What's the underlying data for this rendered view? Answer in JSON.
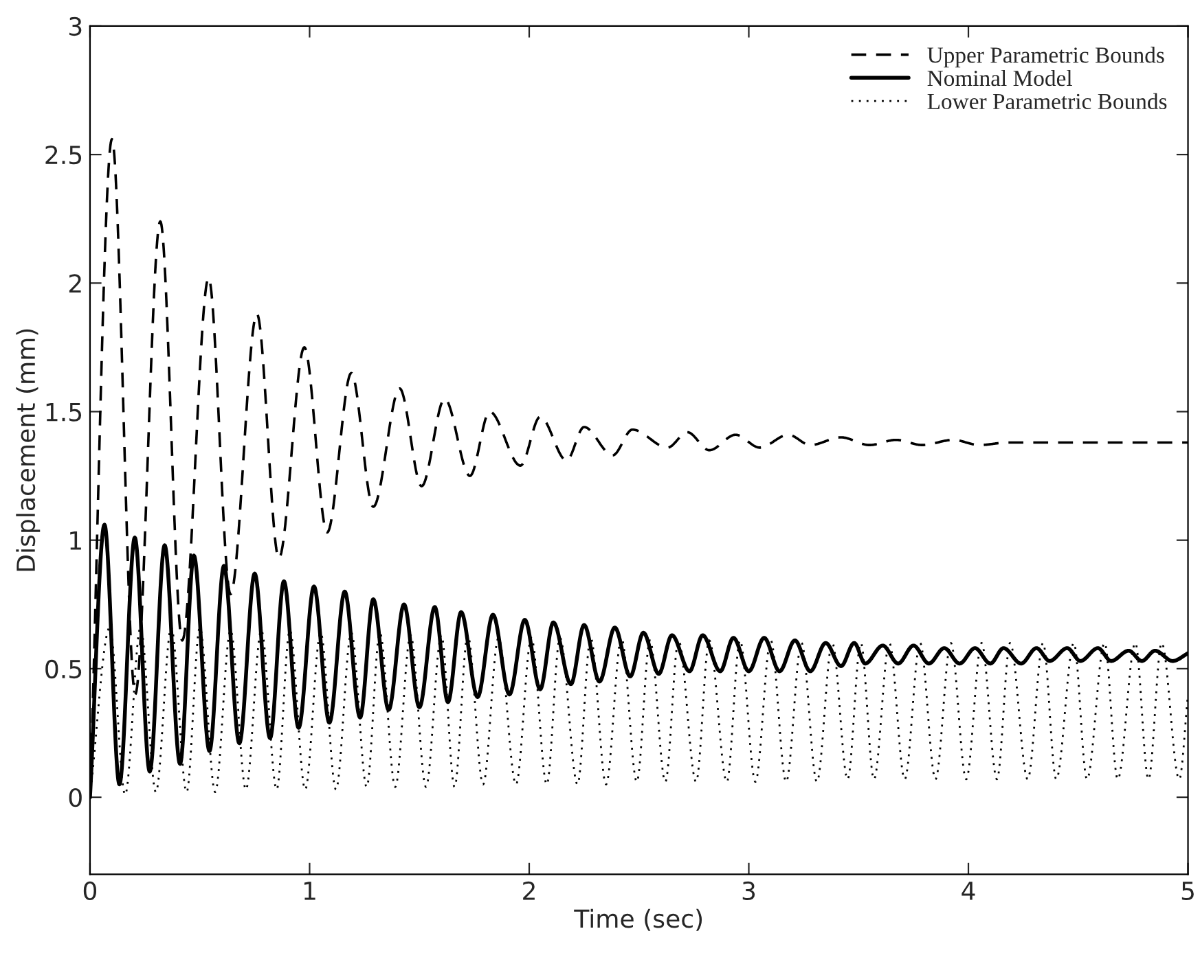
{
  "chart_data": {
    "type": "line",
    "xlabel": "Time (sec)",
    "ylabel": "Displacement (mm)",
    "xlim": [
      0,
      5
    ],
    "xticks": [
      0,
      1,
      2,
      3,
      4,
      5
    ],
    "ylim": [
      -0.3,
      3
    ],
    "yticks": [
      0,
      0.5,
      1,
      1.5,
      2,
      2.5,
      3
    ],
    "grid": false,
    "legend": "top right",
    "marker": "none",
    "series": [
      {
        "name": "Upper Parametric Bounds",
        "color": "#000000",
        "line_style": "dashed",
        "x": [
          0,
          0.1,
          0.206,
          0.32,
          0.42,
          0.54,
          0.64,
          0.76,
          0.86,
          0.976,
          1.08,
          1.19,
          1.29,
          1.41,
          1.51,
          1.615,
          1.73,
          1.82,
          1.96,
          2.05,
          2.17,
          2.25,
          2.38,
          2.47,
          2.63,
          2.72,
          2.82,
          2.94,
          3.05,
          3.18,
          3.28,
          3.42,
          3.55,
          3.67,
          3.79,
          3.93,
          4.05,
          4.18,
          4.5,
          5.0
        ],
        "values": [
          0,
          2.56,
          0.4,
          2.24,
          0.61,
          2.02,
          0.79,
          1.88,
          0.93,
          1.75,
          1.03,
          1.65,
          1.13,
          1.59,
          1.21,
          1.55,
          1.25,
          1.5,
          1.29,
          1.48,
          1.31,
          1.44,
          1.33,
          1.43,
          1.36,
          1.42,
          1.35,
          1.41,
          1.36,
          1.41,
          1.37,
          1.4,
          1.37,
          1.39,
          1.37,
          1.39,
          1.37,
          1.38,
          1.38,
          1.38
        ]
      },
      {
        "name": "Nominal Model",
        "color": "#000000",
        "line_style": "solid",
        "x": [
          0,
          0.066,
          0.134,
          0.204,
          0.272,
          0.34,
          0.41,
          0.473,
          0.544,
          0.61,
          0.68,
          0.75,
          0.82,
          0.883,
          0.95,
          1.02,
          1.09,
          1.16,
          1.23,
          1.29,
          1.36,
          1.43,
          1.5,
          1.57,
          1.63,
          1.69,
          1.765,
          1.835,
          1.91,
          1.98,
          2.05,
          2.11,
          2.19,
          2.25,
          2.32,
          2.39,
          2.46,
          2.52,
          2.59,
          2.65,
          2.73,
          2.79,
          2.87,
          2.93,
          3.0,
          3.07,
          3.14,
          3.21,
          3.28,
          3.35,
          3.42,
          3.48,
          3.53,
          3.61,
          3.68,
          3.75,
          3.82,
          3.89,
          3.96,
          4.03,
          4.1,
          4.16,
          4.24,
          4.31,
          4.37,
          4.45,
          4.51,
          4.59,
          4.65,
          4.73,
          4.79,
          4.85,
          4.93,
          5.0
        ],
        "values": [
          0,
          1.06,
          0.05,
          1.01,
          0.1,
          0.98,
          0.13,
          0.94,
          0.18,
          0.9,
          0.21,
          0.87,
          0.23,
          0.84,
          0.27,
          0.82,
          0.29,
          0.8,
          0.31,
          0.77,
          0.34,
          0.75,
          0.35,
          0.74,
          0.37,
          0.72,
          0.39,
          0.71,
          0.4,
          0.69,
          0.42,
          0.68,
          0.44,
          0.67,
          0.45,
          0.66,
          0.47,
          0.64,
          0.48,
          0.63,
          0.49,
          0.63,
          0.49,
          0.62,
          0.49,
          0.62,
          0.49,
          0.61,
          0.49,
          0.6,
          0.51,
          0.6,
          0.52,
          0.59,
          0.52,
          0.59,
          0.52,
          0.58,
          0.52,
          0.58,
          0.52,
          0.58,
          0.52,
          0.58,
          0.53,
          0.58,
          0.53,
          0.58,
          0.53,
          0.57,
          0.53,
          0.57,
          0.53,
          0.56
        ]
      },
      {
        "name": "Lower Parametric Bounds",
        "color": "#000000",
        "line_style": "dotted",
        "x": [
          0,
          0.09,
          0.16,
          0.23,
          0.3,
          0.37,
          0.44,
          0.5,
          0.57,
          0.64,
          0.71,
          0.78,
          0.85,
          0.91,
          0.98,
          1.05,
          1.12,
          1.19,
          1.26,
          1.32,
          1.39,
          1.46,
          1.53,
          1.6,
          1.66,
          1.72,
          1.79,
          1.86,
          1.94,
          2.01,
          2.08,
          2.14,
          2.22,
          2.28,
          2.35,
          2.42,
          2.49,
          2.55,
          2.62,
          2.68,
          2.76,
          2.82,
          2.9,
          2.96,
          3.03,
          3.1,
          3.17,
          3.24,
          3.31,
          3.38,
          3.45,
          3.51,
          3.57,
          3.64,
          3.71,
          3.78,
          3.85,
          3.92,
          3.99,
          4.06,
          4.13,
          4.19,
          4.27,
          4.34,
          4.4,
          4.48,
          4.54,
          4.62,
          4.68,
          4.76,
          4.82,
          4.88,
          4.96,
          5.0
        ],
        "values": [
          0,
          0.66,
          0.01,
          0.66,
          0.02,
          0.66,
          0.02,
          0.66,
          0.02,
          0.65,
          0.03,
          0.65,
          0.03,
          0.65,
          0.03,
          0.64,
          0.03,
          0.64,
          0.04,
          0.64,
          0.04,
          0.63,
          0.04,
          0.63,
          0.04,
          0.63,
          0.05,
          0.62,
          0.05,
          0.62,
          0.05,
          0.62,
          0.05,
          0.62,
          0.05,
          0.62,
          0.06,
          0.61,
          0.06,
          0.61,
          0.06,
          0.61,
          0.06,
          0.61,
          0.06,
          0.61,
          0.06,
          0.6,
          0.06,
          0.6,
          0.07,
          0.6,
          0.07,
          0.6,
          0.07,
          0.6,
          0.07,
          0.6,
          0.07,
          0.6,
          0.07,
          0.6,
          0.07,
          0.6,
          0.07,
          0.6,
          0.07,
          0.6,
          0.07,
          0.6,
          0.07,
          0.6,
          0.07,
          0.4
        ]
      }
    ]
  }
}
